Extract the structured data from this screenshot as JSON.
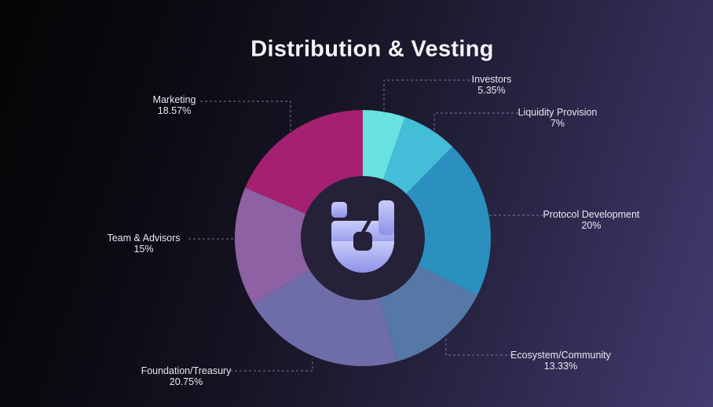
{
  "title": "Distribution & Vesting",
  "chart_data": {
    "type": "pie",
    "title": "Distribution & Vesting",
    "donut": true,
    "start_angle_deg": 0,
    "direction": "clockwise",
    "legend_position": "outside-labels-with-dashed-leader-lines",
    "slices": [
      {
        "label": "Investors",
        "value": 5.35,
        "value_label": "5.35%",
        "color": "#68e2e1"
      },
      {
        "label": "Liquidity Provision",
        "value": 7,
        "value_label": "7%",
        "color": "#44bed8"
      },
      {
        "label": "Protocol Development",
        "value": 20,
        "value_label": "20%",
        "color": "#2b90bf"
      },
      {
        "label": "Ecosystem/Community",
        "value": 13.33,
        "value_label": "13.33%",
        "color": "#5578a7"
      },
      {
        "label": "Foundation/Treasury",
        "value": 20.75,
        "value_label": "20.75%",
        "color": "#6f6caa"
      },
      {
        "label": "Team & Advisors",
        "value": 15,
        "value_label": "15%",
        "color": "#8d61a3"
      },
      {
        "label": "Marketing",
        "value": 18.57,
        "value_label": "18.57%",
        "color": "#a62071"
      }
    ],
    "center_hole_color": "#242138"
  },
  "logo": {
    "name": "u-token-logo",
    "gradient_top": "#c9ccf9",
    "gradient_bottom": "#8d92e9"
  },
  "theme": {
    "background_from": "#040405",
    "background_to": "#423c70",
    "title_color": "#f4f4f8",
    "label_color": "#e8e8f0",
    "leader_line_color": "#8f8cb5"
  }
}
